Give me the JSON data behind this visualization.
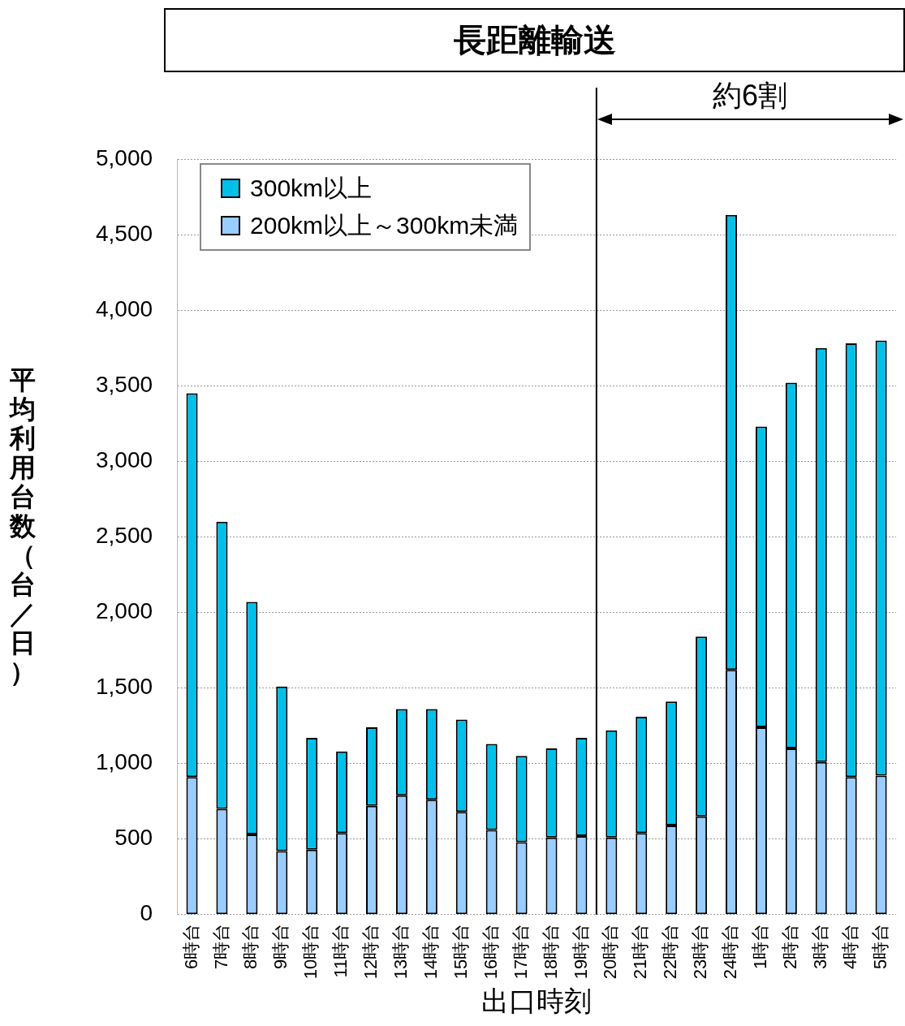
{
  "chart_data": {
    "type": "bar",
    "title": "長距離輸送",
    "xlabel": "出口時刻",
    "ylabel": "平均利用台数（台／日）",
    "categories": [
      "6時台",
      "7時台",
      "8時台",
      "9時台",
      "10時台",
      "11時台",
      "12時台",
      "13時台",
      "14時台",
      "15時台",
      "16時台",
      "17時台",
      "18時台",
      "19時台",
      "20時台",
      "21時台",
      "22時台",
      "23時台",
      "24時台",
      "1時台",
      "2時台",
      "3時台",
      "4時台",
      "5時台"
    ],
    "series": [
      {
        "name": "200km以上～300km未満",
        "color": "#99ccff",
        "values": [
          910,
          700,
          530,
          420,
          430,
          540,
          720,
          790,
          760,
          680,
          560,
          480,
          510,
          520,
          510,
          540,
          590,
          650,
          1620,
          1240,
          1100,
          1010,
          910,
          920
        ]
      },
      {
        "name": "300km以上",
        "color": "#00c0ea",
        "values": [
          2540,
          1900,
          1540,
          1090,
          740,
          540,
          520,
          570,
          600,
          610,
          570,
          570,
          590,
          650,
          710,
          770,
          820,
          1190,
          3010,
          1990,
          2420,
          2740,
          2870,
          2880
        ]
      }
    ],
    "stacked": true,
    "ylim": [
      0,
      5000
    ],
    "yticks": [
      0,
      500,
      {
        "value": 1000,
        "label": "1,000"
      },
      {
        "value": 1500,
        "label": "1,500"
      },
      {
        "value": 2000,
        "label": "2,000"
      },
      {
        "value": 2500,
        "label": "2,500"
      },
      {
        "value": 3000,
        "label": "3,000"
      },
      {
        "value": 3500,
        "label": "3,500"
      },
      {
        "value": 4000,
        "label": "4,000"
      },
      {
        "value": 4500,
        "label": "4,500"
      },
      {
        "value": 5000,
        "label": "5,000"
      }
    ],
    "grid": "y",
    "legend": "top left",
    "ref_lines": [
      {
        "axis": "x",
        "value": "20時台"
      }
    ],
    "annotations": [
      "約6割"
    ]
  }
}
